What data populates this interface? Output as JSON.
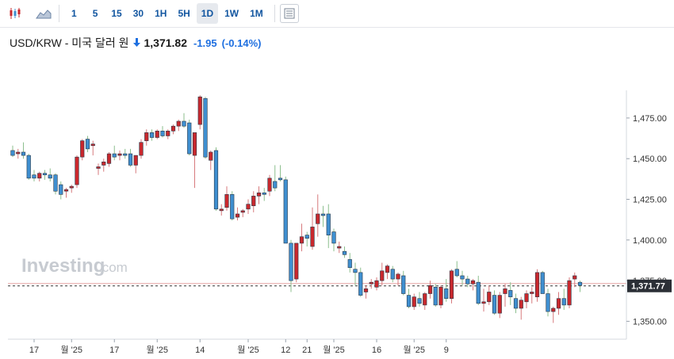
{
  "toolbar": {
    "intervals": [
      "1",
      "5",
      "15",
      "30",
      "1H",
      "5H",
      "1D",
      "1W",
      "1M"
    ],
    "selected": "1D"
  },
  "quote": {
    "name": "USD/KRW - 미국 달러 원",
    "price": "1,371.82",
    "change": "-1.95",
    "change_pct": "(-0.14%)"
  },
  "watermark": {
    "brand": "Investing",
    "suffix": ".com"
  },
  "colors": {
    "up": "#c9282d",
    "down": "#3f8fd0",
    "change": "#1e6fe0"
  },
  "current_label": "1,371.77",
  "chart_data": {
    "type": "candlestick",
    "title": "",
    "y_ticks": [
      {
        "value": 1475,
        "label": "1,475.00"
      },
      {
        "value": 1450,
        "label": "1,450.00"
      },
      {
        "value": 1425,
        "label": "1,425.00"
      },
      {
        "value": 1400,
        "label": "1,400.00"
      },
      {
        "value": 1375,
        "label": "1,375.00"
      },
      {
        "value": 1350,
        "label": "1,350.00"
      }
    ],
    "ylim": [
      1339,
      1492
    ],
    "current_price": 1371.77,
    "x_tick_labels": [
      {
        "index": 4,
        "label": "17"
      },
      {
        "index": 11,
        "label": "월 '25"
      },
      {
        "index": 19,
        "label": "17"
      },
      {
        "index": 27,
        "label": "월 '25"
      },
      {
        "index": 35,
        "label": "14"
      },
      {
        "index": 44,
        "label": "월 '25"
      },
      {
        "index": 51,
        "label": "12"
      },
      {
        "index": 55,
        "label": "21"
      },
      {
        "index": 60,
        "label": "월 '25"
      },
      {
        "index": 68,
        "label": "16"
      },
      {
        "index": 75,
        "label": "월 '25"
      },
      {
        "index": 81,
        "label": "9"
      }
    ],
    "ohlc": [
      [
        1455,
        1458,
        1451,
        1452
      ],
      [
        1453,
        1456,
        1450,
        1454
      ],
      [
        1454,
        1460,
        1450,
        1452
      ],
      [
        1452,
        1453,
        1437,
        1438
      ],
      [
        1440,
        1443,
        1436,
        1438
      ],
      [
        1438,
        1442,
        1436,
        1441
      ],
      [
        1441,
        1443,
        1437,
        1440
      ],
      [
        1440,
        1444,
        1436,
        1438
      ],
      [
        1440,
        1441,
        1428,
        1430
      ],
      [
        1434,
        1436,
        1425,
        1428
      ],
      [
        1430,
        1432,
        1426,
        1431
      ],
      [
        1432,
        1434,
        1429,
        1433
      ],
      [
        1434,
        1452,
        1432,
        1451
      ],
      [
        1451,
        1462,
        1449,
        1461
      ],
      [
        1462,
        1464,
        1454,
        1456
      ],
      [
        1458,
        1461,
        1452,
        1459
      ],
      [
        1444,
        1447,
        1440,
        1445
      ],
      [
        1446,
        1450,
        1442,
        1448
      ],
      [
        1447,
        1454,
        1445,
        1453
      ],
      [
        1453,
        1458,
        1449,
        1451
      ],
      [
        1452,
        1455,
        1449,
        1453
      ],
      [
        1453,
        1456,
        1450,
        1452
      ],
      [
        1453,
        1456,
        1445,
        1446
      ],
      [
        1446,
        1452,
        1441,
        1452
      ],
      [
        1452,
        1462,
        1450,
        1460
      ],
      [
        1461,
        1468,
        1458,
        1466
      ],
      [
        1466,
        1468,
        1461,
        1463
      ],
      [
        1463,
        1468,
        1462,
        1467
      ],
      [
        1467,
        1470,
        1463,
        1464
      ],
      [
        1464,
        1468,
        1462,
        1467
      ],
      [
        1467,
        1471,
        1465,
        1470
      ],
      [
        1470,
        1474,
        1467,
        1473
      ],
      [
        1473,
        1478,
        1469,
        1470
      ],
      [
        1472,
        1474,
        1452,
        1453
      ],
      [
        1452,
        1466,
        1432,
        1466
      ],
      [
        1471,
        1489,
        1468,
        1488
      ],
      [
        1487,
        1488,
        1450,
        1451
      ],
      [
        1449,
        1455,
        1443,
        1454
      ],
      [
        1455,
        1457,
        1418,
        1419
      ],
      [
        1418,
        1422,
        1415,
        1419
      ],
      [
        1420,
        1433,
        1418,
        1428
      ],
      [
        1428,
        1430,
        1412,
        1413
      ],
      [
        1414,
        1420,
        1412,
        1416
      ],
      [
        1417,
        1419,
        1414,
        1418
      ],
      [
        1419,
        1425,
        1416,
        1422
      ],
      [
        1421,
        1430,
        1417,
        1427
      ],
      [
        1427,
        1433,
        1422,
        1429
      ],
      [
        1429,
        1432,
        1424,
        1428
      ],
      [
        1430,
        1440,
        1427,
        1438
      ],
      [
        1436,
        1446,
        1430,
        1432
      ],
      [
        1438,
        1446,
        1436,
        1437
      ],
      [
        1437,
        1439,
        1398,
        1398
      ],
      [
        1398,
        1400,
        1368,
        1375
      ],
      [
        1376,
        1398,
        1374,
        1398
      ],
      [
        1398,
        1410,
        1393,
        1402
      ],
      [
        1403,
        1405,
        1396,
        1401
      ],
      [
        1396,
        1420,
        1394,
        1408
      ],
      [
        1410,
        1428,
        1402,
        1416
      ],
      [
        1416,
        1421,
        1408,
        1415
      ],
      [
        1416,
        1422,
        1395,
        1403
      ],
      [
        1405,
        1407,
        1393,
        1398
      ],
      [
        1395,
        1399,
        1392,
        1396
      ],
      [
        1393,
        1396,
        1389,
        1391
      ],
      [
        1388,
        1392,
        1380,
        1383
      ],
      [
        1382,
        1386,
        1372,
        1380
      ],
      [
        1380,
        1383,
        1365,
        1366
      ],
      [
        1368,
        1372,
        1364,
        1370
      ],
      [
        1373,
        1376,
        1370,
        1374
      ],
      [
        1371,
        1377,
        1369,
        1375
      ],
      [
        1375,
        1386,
        1372,
        1381
      ],
      [
        1380,
        1385,
        1376,
        1384
      ],
      [
        1382,
        1384,
        1374,
        1376
      ],
      [
        1376,
        1380,
        1372,
        1379
      ],
      [
        1378,
        1381,
        1366,
        1367
      ],
      [
        1366,
        1370,
        1358,
        1359
      ],
      [
        1359,
        1367,
        1357,
        1365
      ],
      [
        1364,
        1368,
        1359,
        1361
      ],
      [
        1360,
        1368,
        1357,
        1367
      ],
      [
        1367,
        1375,
        1364,
        1372
      ],
      [
        1371,
        1373,
        1359,
        1360
      ],
      [
        1360,
        1372,
        1358,
        1371
      ],
      [
        1370,
        1376,
        1362,
        1364
      ],
      [
        1364,
        1382,
        1361,
        1381
      ],
      [
        1382,
        1387,
        1377,
        1378
      ],
      [
        1378,
        1381,
        1372,
        1376
      ],
      [
        1376,
        1378,
        1371,
        1373
      ],
      [
        1373,
        1376,
        1369,
        1375
      ],
      [
        1374,
        1378,
        1360,
        1361
      ],
      [
        1361,
        1370,
        1356,
        1362
      ],
      [
        1362,
        1372,
        1360,
        1368
      ],
      [
        1366,
        1369,
        1354,
        1355
      ],
      [
        1355,
        1368,
        1352,
        1366
      ],
      [
        1367,
        1373,
        1359,
        1370
      ],
      [
        1369,
        1374,
        1360,
        1365
      ],
      [
        1364,
        1367,
        1355,
        1358
      ],
      [
        1358,
        1365,
        1351,
        1363
      ],
      [
        1362,
        1369,
        1358,
        1367
      ],
      [
        1367,
        1371,
        1361,
        1368
      ],
      [
        1365,
        1382,
        1362,
        1380
      ],
      [
        1380,
        1381,
        1367,
        1367
      ],
      [
        1367,
        1370,
        1353,
        1356
      ],
      [
        1356,
        1359,
        1349,
        1358
      ],
      [
        1358,
        1368,
        1354,
        1364
      ],
      [
        1364,
        1370,
        1357,
        1360
      ],
      [
        1360,
        1377,
        1358,
        1375
      ],
      [
        1376,
        1380,
        1371,
        1378
      ],
      [
        1374,
        1375,
        1368,
        1372
      ]
    ]
  }
}
